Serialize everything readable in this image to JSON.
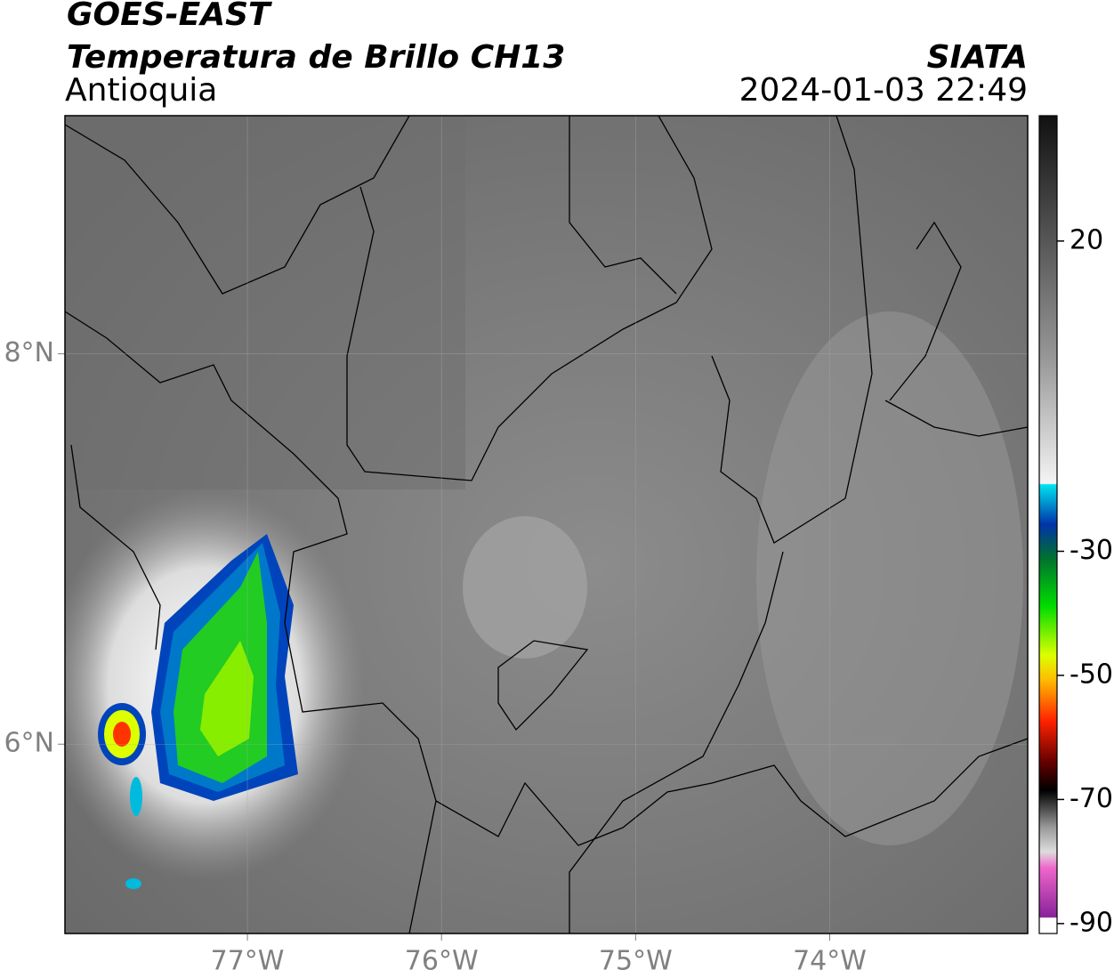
{
  "header": {
    "line1": "GOES-EAST",
    "line2": "Temperatura de Brillo CH13",
    "region": "Antioquia",
    "agency": "SIATA",
    "datetime": "2024-01-03 22:49"
  },
  "map": {
    "xlim": [
      -77.94,
      -72.98
    ],
    "ylim": [
      5.03,
      9.22
    ],
    "xticks": [
      {
        "value": -77,
        "label": "77°W"
      },
      {
        "value": -76,
        "label": "76°W"
      },
      {
        "value": -75,
        "label": "75°W"
      },
      {
        "value": -74,
        "label": "74°W"
      }
    ],
    "yticks": [
      {
        "value": 8,
        "label": "8°N"
      },
      {
        "value": 6,
        "label": "6°N"
      }
    ]
  },
  "colorbar": {
    "lim": [
      -91.6,
      40.2
    ],
    "ticks": [
      20,
      -30,
      -50,
      -70,
      -90
    ]
  }
}
